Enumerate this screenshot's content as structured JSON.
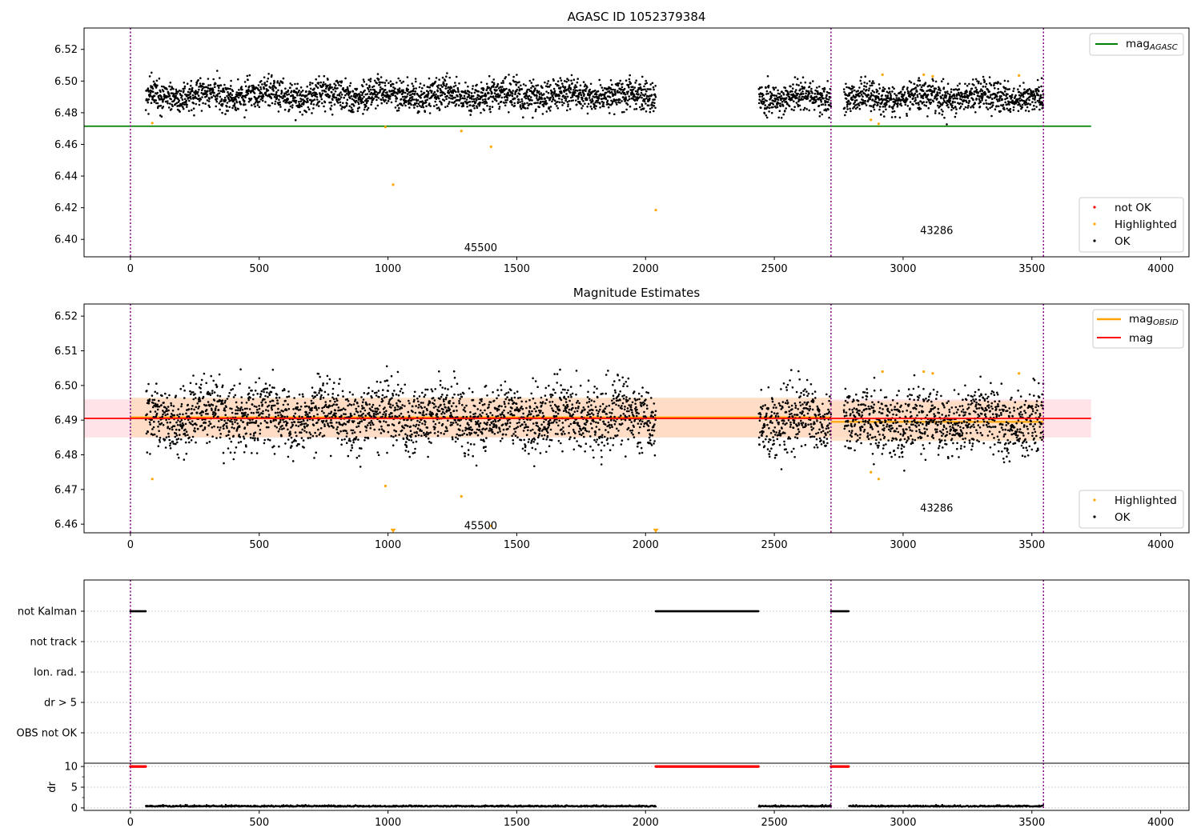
{
  "figure": {
    "colors": {
      "ok": "#000000",
      "highlighted": "#ffa500",
      "not_ok": "#ff0000",
      "agasc_line": "#008000",
      "mag_line": "#ff0000",
      "obsid_line": "#ffa500",
      "obs_boundary": "#800080",
      "band_global": "#ffc0cb",
      "band_obsid": "#ffdab9"
    }
  },
  "chart_data": [
    {
      "type": "scatter",
      "title": "AGASC ID 1052379384",
      "xlim": [
        -180,
        4110
      ],
      "ylim": [
        6.389,
        6.5335
      ],
      "xticks": [
        0,
        500,
        1000,
        1500,
        2000,
        2500,
        3000,
        3500,
        4000
      ],
      "yticks": [
        6.4,
        6.42,
        6.44,
        6.46,
        6.48,
        6.5,
        6.52
      ],
      "ytick_labels": [
        "6.40",
        "6.42",
        "6.44",
        "6.46",
        "6.48",
        "6.50",
        "6.52"
      ],
      "legend_lines": [
        {
          "label": "mag",
          "sub": "AGASC",
          "color": "#008000"
        }
      ],
      "legend_points": [
        "not OK",
        "Highlighted",
        "OK"
      ],
      "agasc_mag": 6.4715,
      "agasc_line_x": [
        -180,
        3730
      ],
      "obs_boundaries": [
        0,
        2720,
        3545
      ],
      "obsid_labels": [
        {
          "text": "45500",
          "x": 1360,
          "y": 6.3945
        },
        {
          "text": "43286",
          "x": 3130,
          "y": 6.4055
        }
      ],
      "ok_series": {
        "name": "OK",
        "segments": [
          {
            "x": [
              60,
              2040
            ],
            "mean": 6.491,
            "spread": 0.0065
          },
          {
            "x": [
              2440,
              2720
            ],
            "mean": 6.49,
            "spread": 0.0065
          },
          {
            "x": [
              2770,
              3545
            ],
            "mean": 6.4895,
            "spread": 0.0065
          }
        ]
      },
      "highlighted_points": {
        "x": [
          85,
          990,
          1020,
          1285,
          1400,
          2040,
          2875,
          2905,
          2920,
          3080,
          3115,
          3450
        ],
        "y": [
          6.4735,
          6.471,
          6.4345,
          6.4685,
          6.4585,
          6.4185,
          6.4755,
          6.473,
          6.504,
          6.504,
          6.503,
          6.5035
        ]
      }
    },
    {
      "type": "scatter",
      "title": "Magnitude Estimates",
      "xlim": [
        -180,
        4110
      ],
      "ylim": [
        6.4575,
        6.5235
      ],
      "xticks": [
        0,
        500,
        1000,
        1500,
        2000,
        2500,
        3000,
        3500,
        4000
      ],
      "yticks": [
        6.46,
        6.47,
        6.48,
        6.49,
        6.5,
        6.51,
        6.52
      ],
      "ytick_labels": [
        "6.46",
        "6.47",
        "6.48",
        "6.49",
        "6.50",
        "6.51",
        "6.52"
      ],
      "legend_lines": [
        {
          "label": "mag",
          "sub": "OBSID",
          "color": "#ffa500"
        },
        {
          "label": "mag",
          "sub": "",
          "color": "#ff0000"
        }
      ],
      "legend_points": [
        "Highlighted",
        "OK"
      ],
      "mag": 6.4905,
      "mag_band": [
        6.485,
        6.496
      ],
      "mag_line_x": [
        -180,
        3730
      ],
      "obsid_means": [
        {
          "x": [
            0,
            2720
          ],
          "mean": 6.4908,
          "band": [
            6.485,
            6.4965
          ]
        },
        {
          "x": [
            2720,
            3545
          ],
          "mean": 6.4895,
          "band": [
            6.484,
            6.4955
          ]
        }
      ],
      "obs_boundaries": [
        0,
        2720,
        3545
      ],
      "obsid_labels": [
        {
          "text": "45500",
          "x": 1360,
          "y": 6.4595
        },
        {
          "text": "43286",
          "x": 3130,
          "y": 6.4645
        }
      ],
      "ok_series": {
        "name": "OK",
        "segments": [
          {
            "x": [
              60,
              2040
            ],
            "mean": 6.491,
            "spread": 0.0065
          },
          {
            "x": [
              2440,
              2720
            ],
            "mean": 6.49,
            "spread": 0.0065
          },
          {
            "x": [
              2770,
              3545
            ],
            "mean": 6.4895,
            "spread": 0.0065
          }
        ]
      },
      "highlighted_points": {
        "x": [
          85,
          990,
          1285,
          1400,
          2875,
          2905,
          2920,
          3080,
          3115,
          3450
        ],
        "y": [
          6.473,
          6.471,
          6.468,
          6.4595,
          6.475,
          6.473,
          6.504,
          6.504,
          6.5035,
          6.5035
        ]
      },
      "clipped_points": {
        "x": [
          1020,
          2040
        ],
        "y": [
          6.458,
          6.458
        ]
      }
    },
    {
      "type": "scatter",
      "title": "",
      "xlim": [
        -180,
        4110
      ],
      "categories": [
        "not Kalman",
        "not track",
        "Ion. rad.",
        "dr > 5",
        "OBS not OK"
      ],
      "flags": {
        "not Kalman": [
          [
            0,
            60
          ],
          [
            2040,
            2440
          ],
          [
            2720,
            2790
          ]
        ],
        "not track": [],
        "Ion. rad.": [],
        "dr > 5": [],
        "OBS not OK": []
      },
      "obs_boundaries": [
        0,
        2720,
        3545
      ]
    },
    {
      "type": "scatter",
      "title": "",
      "ylabel": "dr",
      "xlim": [
        -180,
        4110
      ],
      "ylim": [
        -0.6,
        10.8
      ],
      "xticks": [
        0,
        500,
        1000,
        1500,
        2000,
        2500,
        3000,
        3500,
        4000
      ],
      "yticks": [
        0,
        5,
        10
      ],
      "ytick_labels": [
        "0",
        "5",
        "10"
      ],
      "dr_capped": {
        "value": 10,
        "ranges": [
          [
            0,
            60
          ],
          [
            2040,
            2440
          ],
          [
            2720,
            2790
          ]
        ]
      },
      "dr_ok": {
        "value_mean": 0.3,
        "ranges": [
          [
            60,
            2040
          ],
          [
            2440,
            2720
          ],
          [
            2790,
            3545
          ]
        ]
      },
      "obs_boundaries": [
        0,
        2720,
        3545
      ]
    }
  ]
}
